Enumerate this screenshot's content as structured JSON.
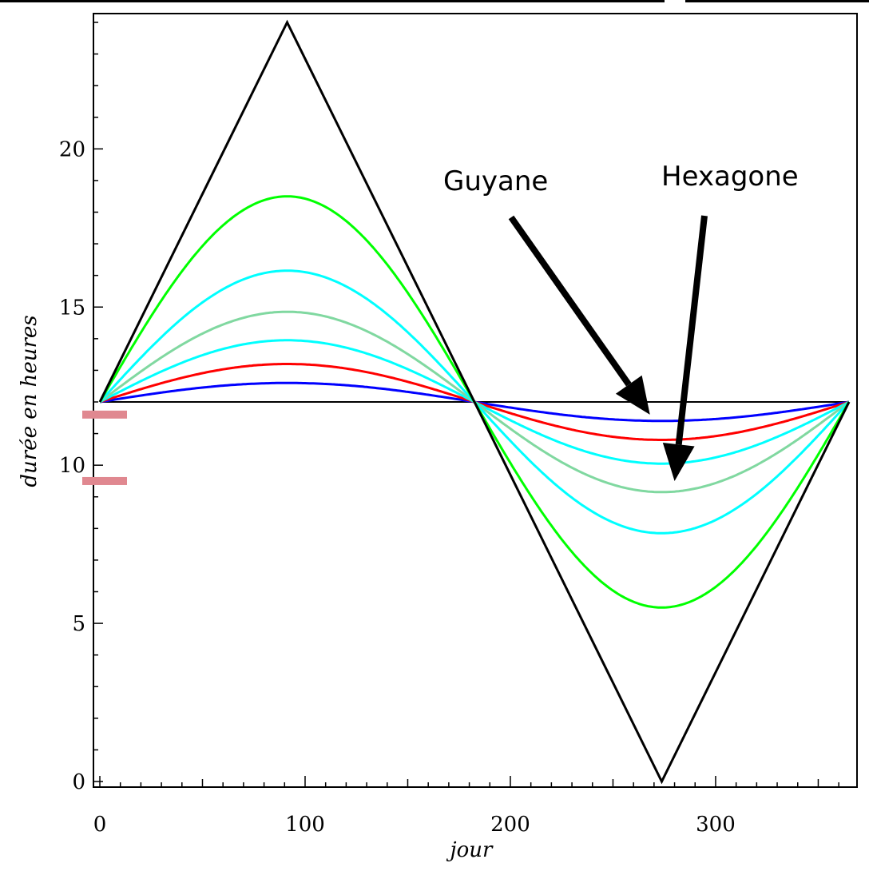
{
  "chart_data": {
    "type": "line",
    "xlabel": "jour",
    "ylabel": "durée en heures",
    "xlim": [
      0,
      365
    ],
    "ylim": [
      0,
      24
    ],
    "xticks": [
      0,
      100,
      200,
      300
    ],
    "yticks": [
      0,
      5,
      10,
      15,
      20
    ],
    "grid": false,
    "legend": "none",
    "series": [
      {
        "color": "#0000ff",
        "min": 11.4,
        "max": 12.6
      },
      {
        "color": "#ff0000",
        "min": 10.8,
        "max": 13.2
      },
      {
        "color": "#00ffff",
        "min": 10.05,
        "max": 13.95
      },
      {
        "color": "#80d8a0",
        "min": 9.15,
        "max": 14.85
      },
      {
        "color": "#00ffff",
        "min": 7.85,
        "max": 16.15
      },
      {
        "color": "#00ff00",
        "min": 5.5,
        "max": 18.5
      },
      {
        "color": "#000000",
        "min": 0,
        "max": 24,
        "shape": "triangle"
      }
    ],
    "reference_line": {
      "y": 12,
      "color": "#000000"
    },
    "annotations": [
      {
        "text": "Guyane",
        "arrow_to": [
          268,
          11.6
        ]
      },
      {
        "text": "Hexagone",
        "arrow_to": [
          280,
          9.5
        ]
      }
    ],
    "markers": [
      {
        "y": 11.6,
        "color": "#e08890"
      },
      {
        "y": 9.5,
        "color": "#e08890"
      }
    ]
  }
}
